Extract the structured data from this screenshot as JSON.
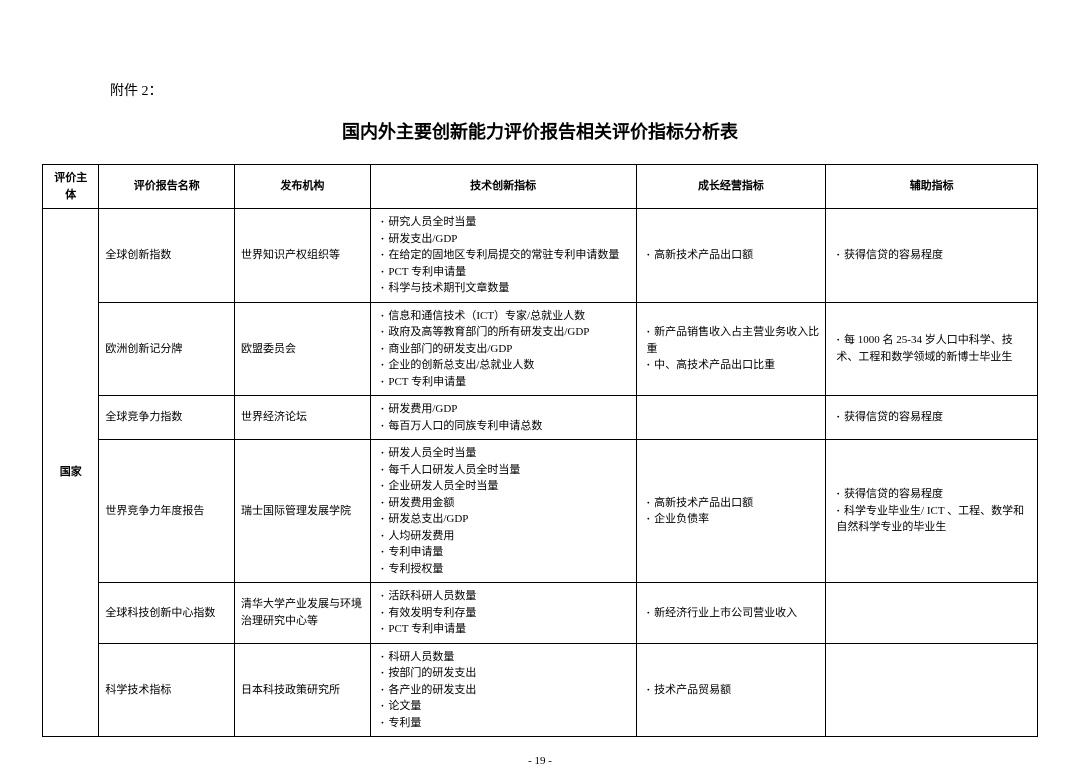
{
  "attachment_label": "附件 2：",
  "main_title": "国内外主要创新能力评价报告相关评价指标分析表",
  "page_number": "- 19 -",
  "headers": {
    "subject": "评价主体",
    "report": "评价报告名称",
    "org": "发布机构",
    "tech": "技术创新指标",
    "growth": "成长经营指标",
    "aux": "辅助指标"
  },
  "subject_label": "国家",
  "rows": [
    {
      "report": "全球创新指数",
      "org": "世界知识产权组织等",
      "tech": [
        "研究人员全时当量",
        "研发支出/GDP",
        "在给定的固地区专利局提交的常驻专利申请数量",
        "PCT 专利申请量",
        "科学与技术期刊文章数量"
      ],
      "growth": [
        "高新技术产品出口额"
      ],
      "aux": [
        "获得信贷的容易程度"
      ]
    },
    {
      "report": "欧洲创新记分牌",
      "org": "欧盟委员会",
      "tech": [
        "信息和通信技术（ICT）专家/总就业人数",
        "政府及高等教育部门的所有研发支出/GDP",
        "商业部门的研发支出/GDP",
        "企业的创新总支出/总就业人数",
        "PCT 专利申请量"
      ],
      "growth": [
        "新产品销售收入占主营业务收入比重",
        "中、高技术产品出口比重"
      ],
      "aux": [
        "每 1000 名 25-34 岁人口中科学、技术、工程和数学领域的新博士毕业生"
      ]
    },
    {
      "report": "全球竞争力指数",
      "org": "世界经济论坛",
      "tech": [
        "研发费用/GDP",
        "每百万人口的同族专利申请总数"
      ],
      "growth": [],
      "aux": [
        "获得信贷的容易程度"
      ]
    },
    {
      "report": "世界竞争力年度报告",
      "org": "瑞士国际管理发展学院",
      "tech": [
        "研发人员全时当量",
        "每千人口研发人员全时当量",
        "企业研发人员全时当量",
        "研发费用金额",
        "研发总支出/GDP",
        "人均研发费用",
        "专利申请量",
        "专利授权量"
      ],
      "growth": [
        "高新技术产品出口额",
        "企业负债率"
      ],
      "aux": [
        "获得信贷的容易程度",
        "科学专业毕业生/ ICT 、工程、数学和自然科学专业的毕业生"
      ]
    },
    {
      "report": "全球科技创新中心指数",
      "org": "清华大学产业发展与环境治理研究中心等",
      "tech": [
        "活跃科研人员数量",
        "有效发明专利存量",
        "PCT 专利申请量"
      ],
      "growth": [
        "新经济行业上市公司营业收入"
      ],
      "aux": []
    },
    {
      "report": "科学技术指标",
      "org": "日本科技政策研究所",
      "tech": [
        "科研人员数量",
        "按部门的研发支出",
        "各产业的研发支出",
        "论文量",
        "专利量"
      ],
      "growth": [
        "技术产品贸易额"
      ],
      "aux": []
    }
  ]
}
